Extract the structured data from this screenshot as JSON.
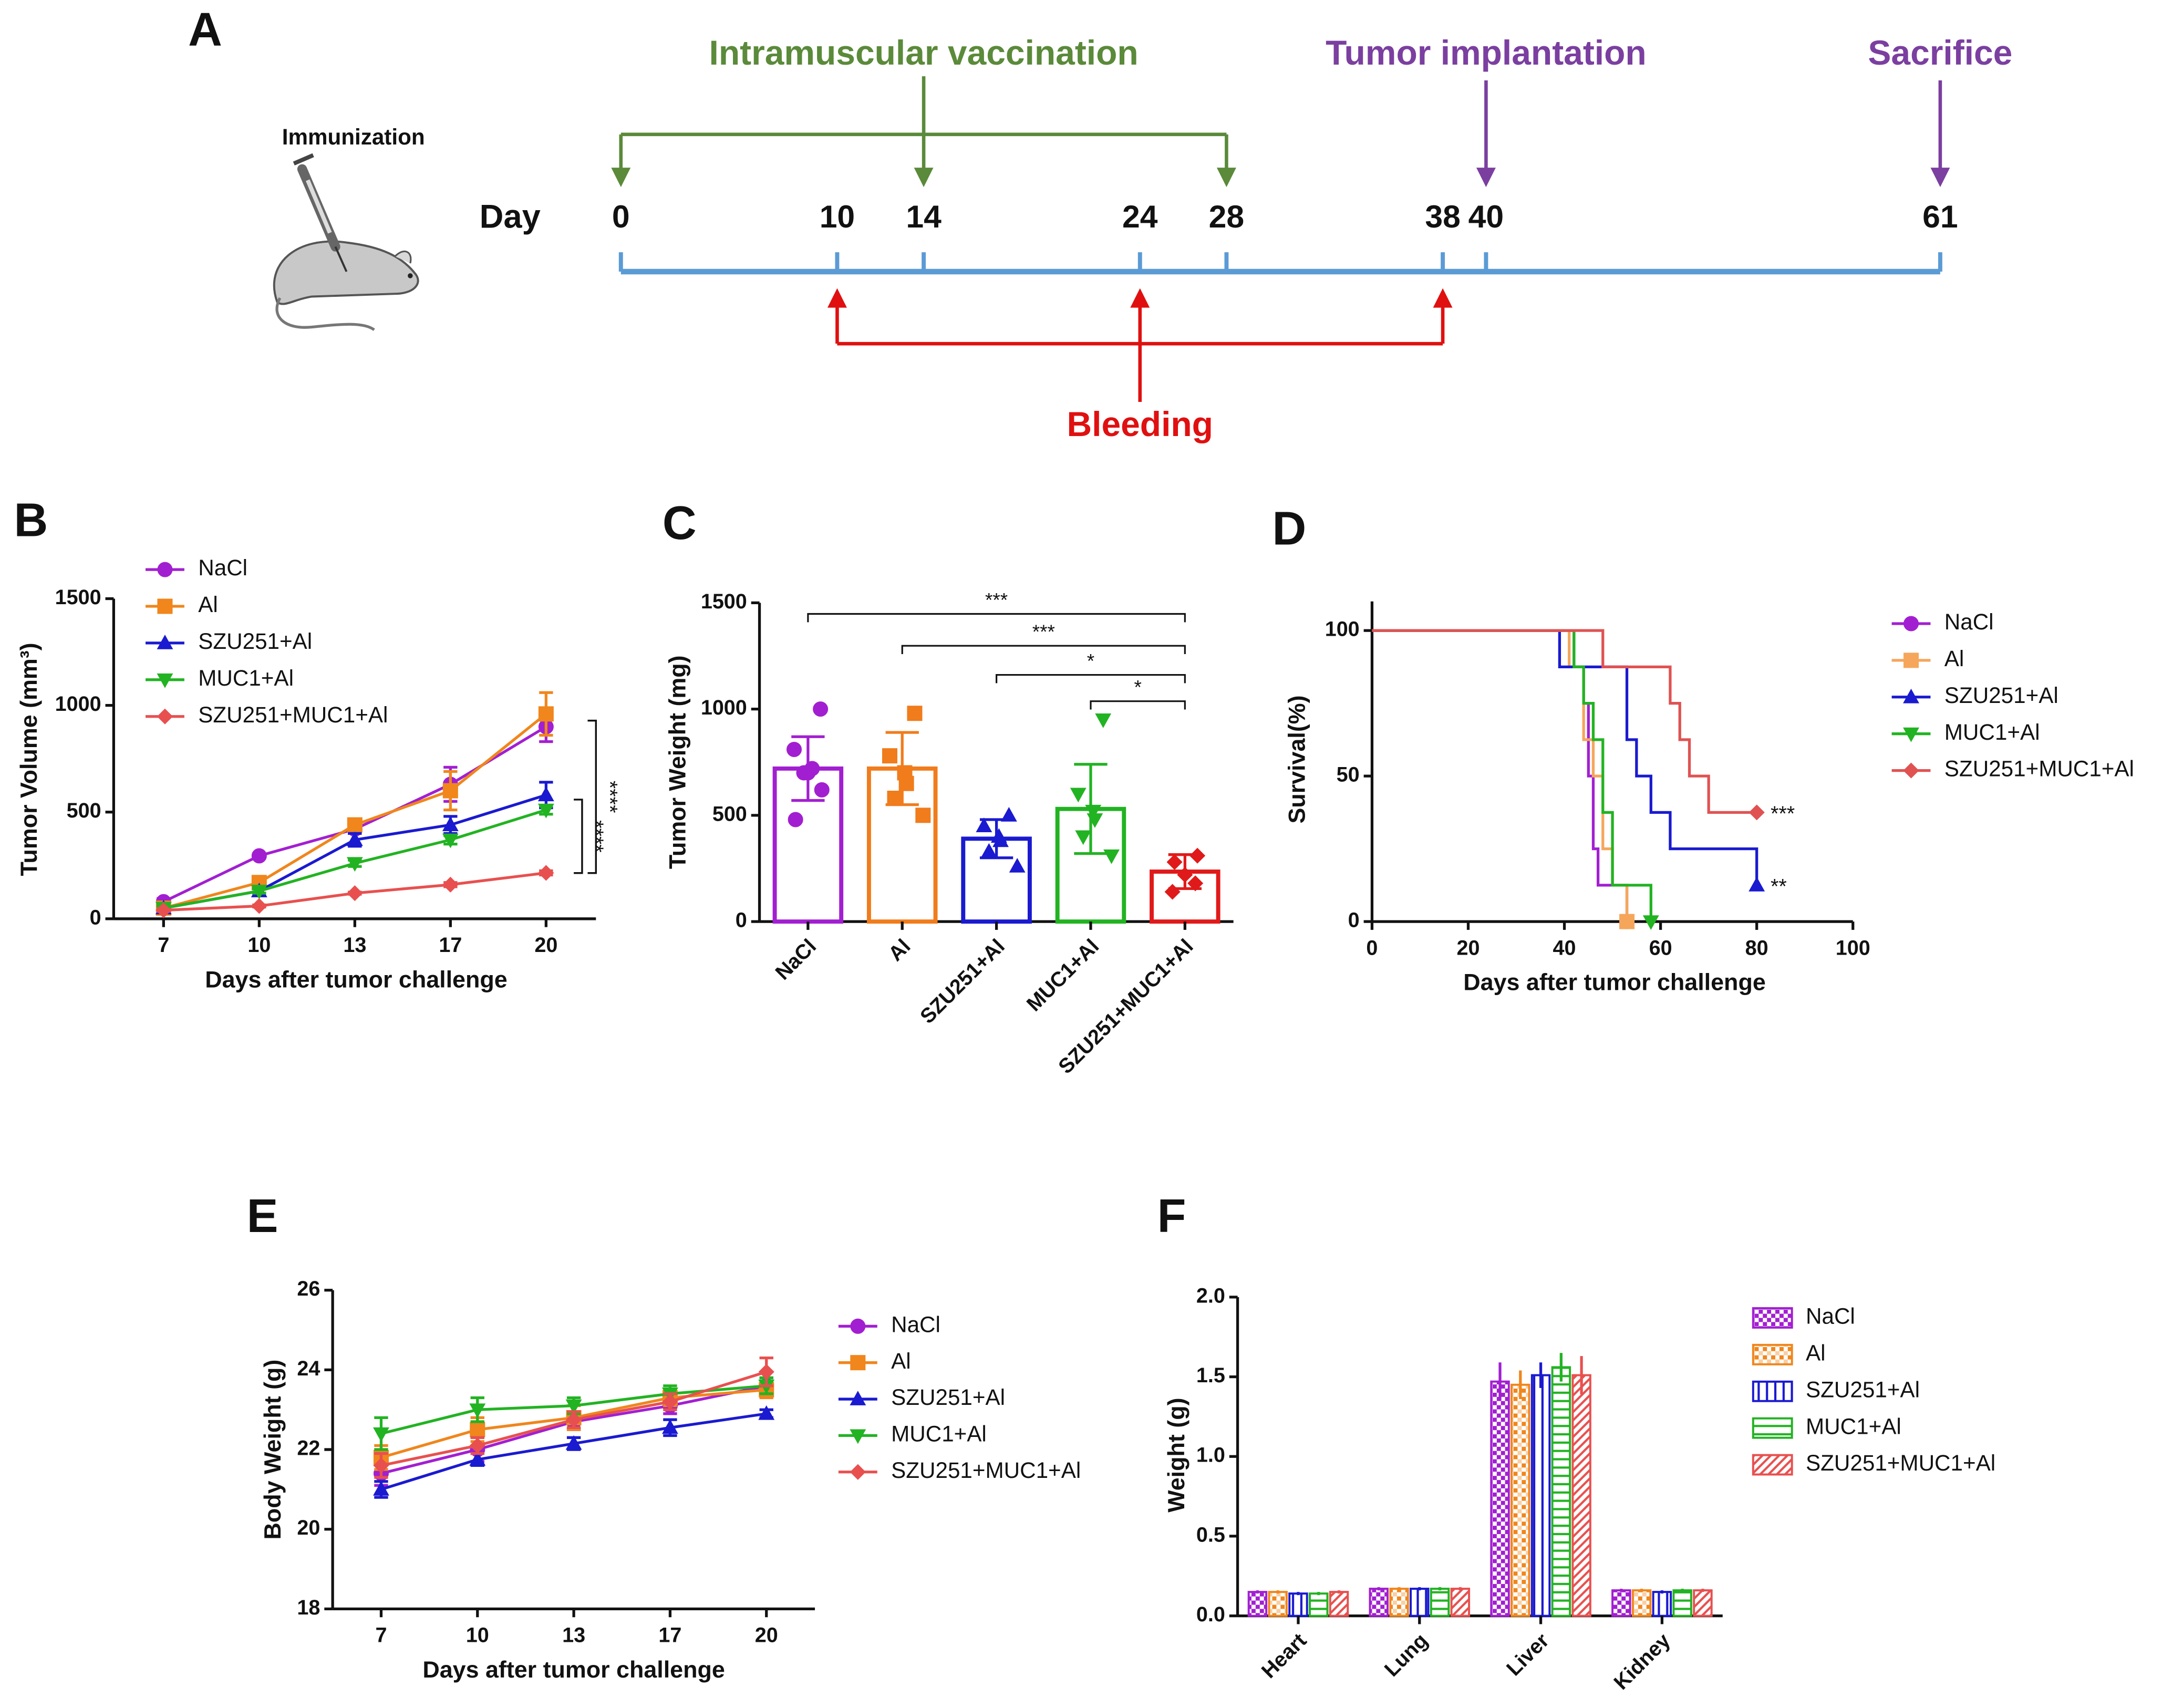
{
  "chart_data": [
    {
      "type": "timeline",
      "panel": "A",
      "icon_label": "Immunization",
      "xlabel": "Day",
      "xlim": [
        0,
        61
      ],
      "xticks": [
        0,
        10,
        14,
        24,
        28,
        38,
        40,
        61
      ],
      "events": [
        {
          "label": "Intramuscular vaccination",
          "days": [
            0,
            14,
            28
          ],
          "color": "#5a8a3a"
        },
        {
          "label": "Bleeding",
          "days": [
            10,
            24,
            38
          ],
          "color": "#e01010"
        },
        {
          "label": "Tumor implantation",
          "days": [
            40
          ],
          "color": "#7b3fa0"
        },
        {
          "label": "Sacrifice",
          "days": [
            61
          ],
          "color": "#7b3fa0"
        }
      ]
    },
    {
      "type": "line",
      "panel": "B",
      "xlabel": "Days after tumor challenge",
      "ylabel": "Tumor Volume (mm³)",
      "categories": [
        "7",
        "10",
        "13",
        "17",
        "20"
      ],
      "ylim": [
        0,
        1500
      ],
      "yticks": [
        0,
        500,
        1000,
        1500
      ],
      "significance": [
        "****",
        "****"
      ],
      "series": [
        {
          "name": "NaCl",
          "color": "#a21fd1",
          "marker": "circle",
          "values": [
            80,
            295,
            420,
            630,
            900
          ],
          "errors": [
            15,
            10,
            20,
            80,
            70
          ]
        },
        {
          "name": "Al",
          "color": "#f0861c",
          "marker": "square",
          "values": [
            50,
            170,
            440,
            600,
            960
          ],
          "errors": [
            15,
            15,
            20,
            90,
            100
          ]
        },
        {
          "name": "SZU251+Al",
          "color": "#1a1ad0",
          "marker": "triangle-up",
          "values": [
            50,
            130,
            370,
            440,
            580
          ],
          "errors": [
            10,
            10,
            30,
            40,
            60
          ]
        },
        {
          "name": "MUC1+Al",
          "color": "#22b322",
          "marker": "triangle-down",
          "values": [
            50,
            130,
            260,
            370,
            510
          ],
          "errors": [
            10,
            10,
            15,
            20,
            20
          ]
        },
        {
          "name": "SZU251+MUC1+Al",
          "color": "#e8504f",
          "marker": "diamond",
          "values": [
            40,
            60,
            120,
            160,
            215
          ],
          "errors": [
            5,
            5,
            5,
            10,
            10
          ]
        }
      ]
    },
    {
      "type": "bar",
      "panel": "C",
      "ylabel": "Tumor Weight (mg)",
      "categories": [
        "NaCl",
        "Al",
        "SZU251+Al",
        "MUC1+Al",
        "SZU251+MUC1+Al"
      ],
      "values": [
        720,
        720,
        390,
        530,
        235
      ],
      "errors": [
        150,
        170,
        90,
        210,
        80
      ],
      "points": [
        [
          1000,
          810,
          720,
          700,
          700,
          620,
          480
        ],
        [
          980,
          780,
          700,
          650,
          580,
          500
        ],
        [
          500,
          450,
          400,
          380,
          330,
          260
        ],
        [
          950,
          600,
          520,
          480,
          400,
          310
        ],
        [
          310,
          280,
          220,
          180,
          140
        ]
      ],
      "colors": [
        "#a21fd1",
        "#f07c1c",
        "#1a1ad0",
        "#22b322",
        "#e01a1a"
      ],
      "markers": [
        "circle",
        "square",
        "triangle-up",
        "triangle-down",
        "diamond"
      ],
      "ylim": [
        0,
        1500
      ],
      "yticks": [
        0,
        500,
        1000,
        1500
      ],
      "significance": [
        "***",
        "***",
        "*",
        "*"
      ]
    },
    {
      "type": "step",
      "panel": "D",
      "xlabel": "Days after tumor challenge",
      "ylabel": "Survival(%)",
      "xlim": [
        0,
        100
      ],
      "xticks": [
        0,
        20,
        40,
        60,
        80,
        100
      ],
      "ylim": [
        0,
        110
      ],
      "yticks": [
        0,
        50,
        100
      ],
      "series": [
        {
          "name": "NaCl",
          "color": "#a21fd1",
          "marker": "circle",
          "x": [
            0,
            42,
            44,
            45,
            46,
            47,
            53
          ],
          "y": [
            100,
            87.5,
            75,
            50,
            25,
            12.5,
            0
          ]
        },
        {
          "name": "Al",
          "color": "#f5a65b",
          "marker": "square",
          "x": [
            0,
            41,
            44,
            46,
            48,
            50,
            53
          ],
          "y": [
            100,
            87.5,
            62.5,
            50,
            25,
            12.5,
            0
          ]
        },
        {
          "name": "SZU251+Al",
          "color": "#1a1ad0",
          "marker": "triangle-up",
          "x": [
            0,
            39,
            53,
            55,
            58,
            62,
            80
          ],
          "y": [
            100,
            87.5,
            62.5,
            50,
            37.5,
            25,
            12.5
          ],
          "annotation": "**"
        },
        {
          "name": "MUC1+Al",
          "color": "#22b322",
          "marker": "triangle-down",
          "x": [
            0,
            42,
            44,
            46,
            48,
            50,
            58
          ],
          "y": [
            100,
            87.5,
            75,
            62.5,
            37.5,
            12.5,
            0
          ]
        },
        {
          "name": "SZU251+MUC1+Al",
          "color": "#e05252",
          "marker": "diamond",
          "x": [
            0,
            48,
            62,
            64,
            66,
            70,
            80
          ],
          "y": [
            100,
            87.5,
            75,
            62.5,
            50,
            37.5,
            37.5
          ],
          "annotation": "***"
        }
      ]
    },
    {
      "type": "line",
      "panel": "E",
      "xlabel": "Days after tumor challenge",
      "ylabel": "Body Weight (g)",
      "categories": [
        "7",
        "10",
        "13",
        "17",
        "20"
      ],
      "ylim": [
        18,
        26
      ],
      "yticks": [
        18,
        20,
        22,
        24,
        26
      ],
      "series": [
        {
          "name": "NaCl",
          "color": "#a21fd1",
          "marker": "circle",
          "values": [
            21.4,
            22.0,
            22.7,
            23.1,
            23.6
          ],
          "errors": [
            0.3,
            0.3,
            0.2,
            0.2,
            0.2
          ]
        },
        {
          "name": "Al",
          "color": "#f0861c",
          "marker": "square",
          "values": [
            21.8,
            22.5,
            22.8,
            23.3,
            23.5
          ],
          "errors": [
            0.3,
            0.3,
            0.3,
            0.2,
            0.2
          ]
        },
        {
          "name": "SZU251+Al",
          "color": "#1a1ad0",
          "marker": "triangle-up",
          "values": [
            21.0,
            21.75,
            22.15,
            22.55,
            22.9
          ],
          "errors": [
            0.2,
            0.15,
            0.15,
            0.2,
            0.1
          ]
        },
        {
          "name": "MUC1+Al",
          "color": "#22b322",
          "marker": "triangle-down",
          "values": [
            22.4,
            23.0,
            23.1,
            23.4,
            23.6
          ],
          "errors": [
            0.4,
            0.3,
            0.2,
            0.2,
            0.2
          ]
        },
        {
          "name": "SZU251+MUC1+Al",
          "color": "#e8504f",
          "marker": "diamond",
          "values": [
            21.6,
            22.1,
            22.75,
            23.2,
            23.95
          ],
          "errors": [
            0.3,
            0.2,
            0.2,
            0.2,
            0.35
          ]
        }
      ]
    },
    {
      "type": "grouped",
      "panel": "F",
      "ylabel": "Weight (g)",
      "categories": [
        "Heart",
        "Lung",
        "Liver",
        "Kidney"
      ],
      "ylim": [
        0,
        2
      ],
      "yticks": [
        {
          "value": 0,
          "label": "0.0"
        },
        0.5,
        {
          "value": 1,
          "label": "1.0"
        },
        1.5,
        {
          "value": 2,
          "label": "2.0"
        }
      ],
      "series": [
        {
          "name": "NaCl",
          "color": "#a21fd1",
          "values": [
            0.15,
            0.17,
            1.47,
            0.16
          ],
          "errors": [
            0.01,
            0.01,
            0.12,
            0.01
          ]
        },
        {
          "name": "Al",
          "color": "#f0861c",
          "values": [
            0.15,
            0.17,
            1.45,
            0.16
          ],
          "errors": [
            0.01,
            0.01,
            0.09,
            0.01
          ]
        },
        {
          "name": "SZU251+Al",
          "color": "#1a1ad0",
          "values": [
            0.14,
            0.17,
            1.51,
            0.15
          ],
          "errors": [
            0.01,
            0.01,
            0.08,
            0.01
          ]
        },
        {
          "name": "MUC1+Al",
          "color": "#22b322",
          "values": [
            0.14,
            0.17,
            1.56,
            0.16
          ],
          "errors": [
            0.01,
            0.01,
            0.09,
            0.01
          ]
        },
        {
          "name": "SZU251+MUC1+Al",
          "color": "#e8504f",
          "values": [
            0.15,
            0.17,
            1.51,
            0.16
          ],
          "errors": [
            0.01,
            0.01,
            0.12,
            0.01
          ]
        }
      ]
    }
  ]
}
